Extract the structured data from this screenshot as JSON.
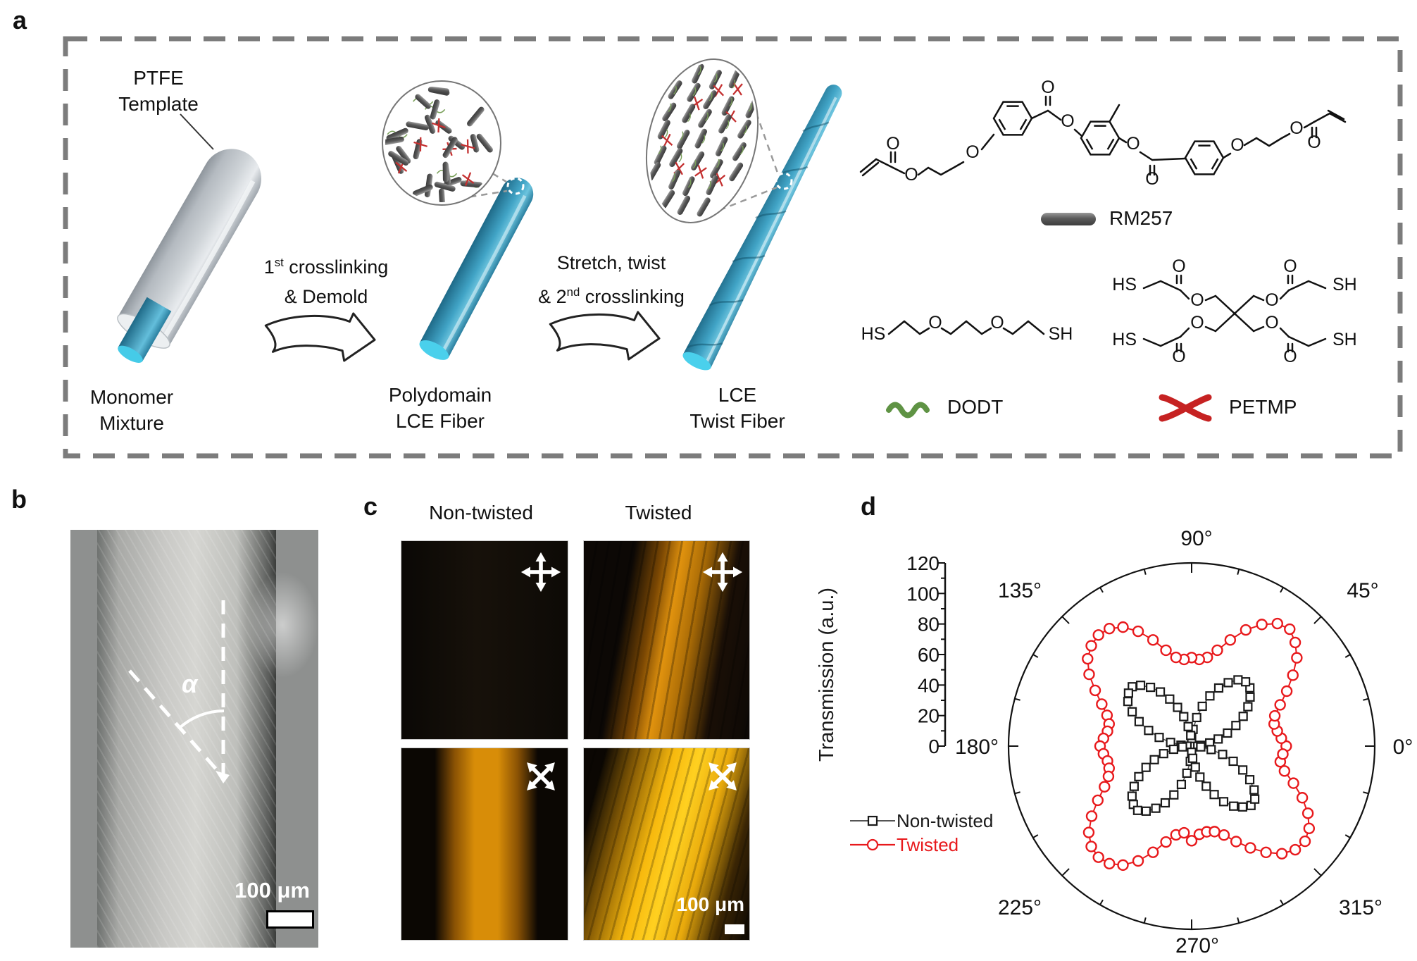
{
  "panel_a": {
    "label": "a",
    "ptfe_template": [
      "PTFE",
      "Template"
    ],
    "monomer_mixture": [
      "Monomer",
      "Mixture"
    ],
    "step1": {
      "base": "1",
      "sup": "st",
      "rest": " crosslinking",
      "line2": "& Demold"
    },
    "step2": {
      "line1": "Stretch, twist",
      "pre": "& 2",
      "sup": "nd",
      "rest": " crosslinking"
    },
    "polydomain_fiber": [
      "Polydomain",
      "LCE Fiber"
    ],
    "twist_fiber": [
      "LCE",
      "Twist Fiber"
    ],
    "molecules": {
      "rm257": {
        "name": "RM257",
        "o_atoms": [
          "O",
          "O",
          "O",
          "O",
          "O",
          "O",
          "O",
          "O",
          "O",
          "O"
        ]
      },
      "dodt": {
        "name": "DODT",
        "thiols": [
          "HS",
          "SH"
        ],
        "o_atoms": [
          "O",
          "O"
        ]
      },
      "petmp": {
        "name": "PETMP",
        "ester_o": [
          "O",
          "O",
          "O",
          "O"
        ],
        "carbonyl_o": [
          "O",
          "O",
          "O",
          "O"
        ],
        "thiols": [
          "HS",
          "SH",
          "HS",
          "SH"
        ]
      }
    },
    "colors": {
      "fiber_blue": "#3ba0c4",
      "cap_cyan": "#45cbe8",
      "dodt_green": "#5f9344",
      "petmp_red": "#c62222"
    }
  },
  "panel_b": {
    "label": "b",
    "angle_symbol": "α",
    "scale_bar": "100 μm"
  },
  "panel_c": {
    "label": "c",
    "col_headers": [
      "Non-twisted",
      "Twisted"
    ],
    "scale_bar": "100 μm"
  },
  "panel_d": {
    "label": "d",
    "ylabel": "Transmission (a.u.)",
    "legend": [
      {
        "label": "Non-twisted",
        "color": "#1a1a1a",
        "marker": "square"
      },
      {
        "label": "Twisted",
        "color": "#e8191c",
        "marker": "circle"
      }
    ]
  },
  "chart_data": {
    "type": "scatter",
    "subtype": "polar",
    "title": "",
    "radial_axis_label": "Transmission (a.u.)",
    "r_ticks": [
      0,
      20,
      40,
      60,
      80,
      100,
      120
    ],
    "r_max": 120,
    "angle_labels": [
      "0°",
      "45°",
      "90°",
      "135°",
      "180°",
      "225°",
      "270°",
      "315°"
    ],
    "angle_step_deg": 5,
    "legend_position": "bottom-left",
    "series": [
      {
        "name": "Non-twisted",
        "marker": "square",
        "color": "#1a1a1a",
        "values": [
          4,
          6,
          12,
          18,
          25,
          32,
          39,
          45,
          50,
          54,
          55,
          53,
          48,
          42,
          35,
          27,
          19,
          11,
          5,
          7,
          13,
          20,
          27,
          34,
          41,
          47,
          52,
          55,
          54,
          51,
          45,
          38,
          30,
          22,
          14,
          7,
          3,
          6,
          12,
          19,
          26,
          33,
          40,
          46,
          51,
          54,
          55,
          52,
          47,
          41,
          34,
          26,
          18,
          10,
          4,
          8,
          14,
          21,
          28,
          35,
          42,
          48,
          52,
          55,
          54,
          50,
          44,
          37,
          29,
          21,
          13,
          6
        ]
      },
      {
        "name": "Twisted",
        "marker": "circle",
        "color": "#e8191c",
        "values": [
          62,
          59,
          57,
          56,
          58,
          64,
          72,
          81,
          90,
          96,
          100,
          98,
          92,
          84,
          74,
          65,
          59,
          57,
          58,
          57,
          59,
          65,
          74,
          83,
          90,
          94,
          95,
          93,
          89,
          82,
          73,
          65,
          59,
          56,
          56,
          58,
          60,
          58,
          56,
          56,
          58,
          63,
          71,
          80,
          88,
          93,
          95,
          94,
          90,
          83,
          74,
          65,
          59,
          57,
          62,
          58,
          57,
          58,
          62,
          69,
          77,
          85,
          92,
          96,
          97,
          94,
          88,
          80,
          71,
          63,
          59,
          60
        ]
      }
    ]
  }
}
